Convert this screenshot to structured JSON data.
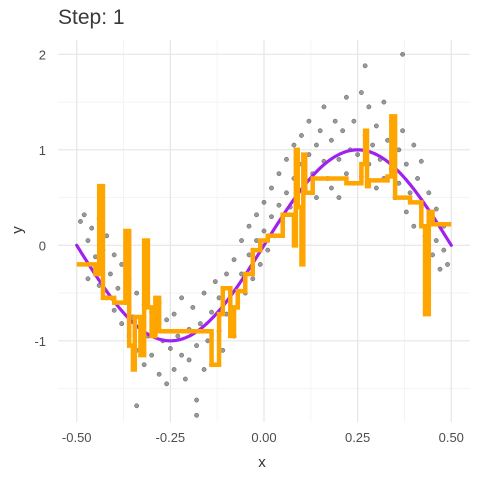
{
  "chart_data": {
    "type": "scatter",
    "title": "Step: 1",
    "xlabel": "x",
    "ylabel": "y",
    "xlim": [
      -0.55,
      0.55
    ],
    "ylim": [
      -1.85,
      2.15
    ],
    "x_ticks": [
      -0.5,
      -0.25,
      0,
      0.25,
      0.5
    ],
    "x_tick_labels": [
      "-0.50",
      "-0.25",
      "0.00",
      "0.25",
      "0.50"
    ],
    "y_ticks": [
      -1,
      0,
      1,
      2
    ],
    "y_tick_labels": [
      "-1",
      "0",
      "1",
      "2"
    ],
    "grid": true,
    "legend": "none",
    "series": [
      {
        "kind": "points",
        "color": "#333333",
        "points_xy": [
          [
            -0.49,
            0.25
          ],
          [
            -0.48,
            0.32
          ],
          [
            -0.47,
            0.05
          ],
          [
            -0.47,
            -0.35
          ],
          [
            -0.46,
            0.18
          ],
          [
            -0.45,
            -0.12
          ],
          [
            -0.44,
            0.28
          ],
          [
            -0.44,
            -0.42
          ],
          [
            -0.43,
            -0.05
          ],
          [
            -0.42,
            -0.55
          ],
          [
            -0.42,
            0.1
          ],
          [
            -0.41,
            -0.3
          ],
          [
            -0.4,
            -0.68
          ],
          [
            -0.4,
            -0.1
          ],
          [
            -0.39,
            -0.45
          ],
          [
            -0.38,
            -0.82
          ],
          [
            -0.38,
            -0.2
          ],
          [
            -0.37,
            -0.6
          ],
          [
            -0.36,
            -0.95
          ],
          [
            -0.36,
            -0.35
          ],
          [
            -0.35,
            -0.75
          ],
          [
            -0.34,
            -1.1
          ],
          [
            -0.34,
            -0.5
          ],
          [
            -0.33,
            -0.85
          ],
          [
            -0.32,
            -1.25
          ],
          [
            -0.32,
            -0.62
          ],
          [
            -0.31,
            -0.95
          ],
          [
            -0.3,
            -0.7
          ],
          [
            -0.3,
            -1.15
          ],
          [
            -0.29,
            -0.85
          ],
          [
            -0.28,
            -1.35
          ],
          [
            -0.28,
            -0.6
          ],
          [
            -0.27,
            -1.0
          ],
          [
            -0.26,
            -0.78
          ],
          [
            -0.26,
            -1.45
          ],
          [
            -0.25,
            -1.08
          ],
          [
            -0.24,
            -0.72
          ],
          [
            -0.24,
            -1.3
          ],
          [
            -0.23,
            -0.95
          ],
          [
            -0.22,
            -1.15
          ],
          [
            -0.22,
            -0.55
          ],
          [
            -0.21,
            -1.4
          ],
          [
            -0.2,
            -0.88
          ],
          [
            -0.2,
            -1.2
          ],
          [
            -0.19,
            -0.65
          ],
          [
            -0.18,
            -1.05
          ],
          [
            -0.18,
            -1.62
          ],
          [
            -0.17,
            -0.82
          ],
          [
            -0.16,
            -1.3
          ],
          [
            -0.16,
            -0.5
          ],
          [
            -0.15,
            -1.0
          ],
          [
            -0.14,
            -0.7
          ],
          [
            -0.14,
            -1.25
          ],
          [
            -0.13,
            -0.38
          ],
          [
            -0.12,
            -0.9
          ],
          [
            -0.12,
            -0.55
          ],
          [
            -0.11,
            -1.1
          ],
          [
            -0.1,
            -0.3
          ],
          [
            -0.1,
            -0.72
          ],
          [
            -0.09,
            -0.45
          ],
          [
            -0.08,
            -0.95
          ],
          [
            -0.08,
            -0.15
          ],
          [
            -0.07,
            -0.6
          ],
          [
            -0.06,
            -0.3
          ],
          [
            -0.06,
            0.05
          ],
          [
            -0.05,
            -0.5
          ],
          [
            -0.04,
            -0.1
          ],
          [
            -0.04,
            0.2
          ],
          [
            -0.03,
            -0.35
          ],
          [
            -0.02,
            0.05
          ],
          [
            -0.02,
            0.32
          ],
          [
            -0.01,
            -0.2
          ],
          [
            0.0,
            0.15
          ],
          [
            0.0,
            0.45
          ],
          [
            0.01,
            -0.05
          ],
          [
            0.02,
            0.3
          ],
          [
            0.02,
            0.6
          ],
          [
            0.03,
            0.1
          ],
          [
            0.04,
            0.42
          ],
          [
            0.04,
            0.75
          ],
          [
            0.05,
            0.25
          ],
          [
            0.06,
            0.55
          ],
          [
            0.06,
            0.9
          ],
          [
            0.07,
            0.4
          ],
          [
            0.08,
            0.7
          ],
          [
            0.08,
            1.05
          ],
          [
            0.09,
            0.5
          ],
          [
            0.1,
            0.85
          ],
          [
            0.1,
            1.15
          ],
          [
            0.11,
            0.6
          ],
          [
            0.12,
            0.95
          ],
          [
            0.12,
            1.3
          ],
          [
            0.13,
            0.75
          ],
          [
            0.14,
            1.05
          ],
          [
            0.14,
            0.5
          ],
          [
            0.15,
            1.2
          ],
          [
            0.16,
            0.88
          ],
          [
            0.16,
            1.45
          ],
          [
            0.17,
            0.7
          ],
          [
            0.18,
            1.1
          ],
          [
            0.18,
            0.6
          ],
          [
            0.19,
            1.3
          ],
          [
            0.2,
            0.9
          ],
          [
            0.2,
            0.5
          ],
          [
            0.21,
            1.2
          ],
          [
            0.22,
            0.75
          ],
          [
            0.22,
            1.55
          ],
          [
            0.23,
            1.0
          ],
          [
            0.24,
            0.65
          ],
          [
            0.24,
            1.3
          ],
          [
            0.25,
            0.95
          ],
          [
            0.26,
            1.6
          ],
          [
            0.26,
            0.72
          ],
          [
            0.27,
            1.15
          ],
          [
            0.28,
            0.85
          ],
          [
            0.28,
            1.45
          ],
          [
            0.29,
            1.05
          ],
          [
            0.3,
            0.6
          ],
          [
            0.3,
            1.25
          ],
          [
            0.31,
            0.9
          ],
          [
            0.32,
            1.5
          ],
          [
            0.32,
            0.7
          ],
          [
            0.33,
            1.1
          ],
          [
            0.34,
            0.8
          ],
          [
            0.34,
            1.3
          ],
          [
            0.35,
            0.5
          ],
          [
            0.36,
            1.0
          ],
          [
            0.36,
            0.65
          ],
          [
            0.37,
            1.2
          ],
          [
            0.38,
            0.35
          ],
          [
            0.38,
            0.85
          ],
          [
            0.39,
            0.55
          ],
          [
            0.4,
            1.05
          ],
          [
            0.4,
            0.2
          ],
          [
            0.41,
            0.7
          ],
          [
            0.42,
            0.4
          ],
          [
            0.42,
            0.88
          ],
          [
            0.43,
            0.1
          ],
          [
            0.44,
            0.55
          ],
          [
            0.44,
            0.25
          ],
          [
            0.45,
            -0.1
          ],
          [
            0.46,
            0.38
          ],
          [
            0.46,
            0.05
          ],
          [
            0.47,
            -0.25
          ],
          [
            0.48,
            0.2
          ],
          [
            0.48,
            -0.05
          ],
          [
            0.49,
            -0.2
          ],
          [
            0.27,
            1.88
          ],
          [
            0.37,
            2.0
          ],
          [
            -0.18,
            -1.78
          ],
          [
            -0.34,
            -1.68
          ]
        ]
      },
      {
        "kind": "line",
        "name": "",
        "color": "#a020f0",
        "function": "sin(2*pi*x)",
        "x_range": [
          -0.5,
          0.5
        ]
      },
      {
        "kind": "step",
        "name": "",
        "color": "#ffa500",
        "points_xy": [
          [
            -0.5,
            -0.2
          ],
          [
            -0.45,
            -0.2
          ],
          [
            -0.45,
            -0.3
          ],
          [
            -0.44,
            -0.3
          ],
          [
            -0.44,
            0.62
          ],
          [
            -0.43,
            0.62
          ],
          [
            -0.43,
            -0.55
          ],
          [
            -0.4,
            -0.55
          ],
          [
            -0.4,
            -0.6
          ],
          [
            -0.37,
            -0.6
          ],
          [
            -0.37,
            0.15
          ],
          [
            -0.36,
            0.15
          ],
          [
            -0.36,
            -1.05
          ],
          [
            -0.35,
            -1.05
          ],
          [
            -0.35,
            -1.3
          ],
          [
            -0.345,
            -1.3
          ],
          [
            -0.345,
            -0.75
          ],
          [
            -0.33,
            -0.75
          ],
          [
            -0.33,
            -1.15
          ],
          [
            -0.32,
            -1.15
          ],
          [
            -0.32,
            0.05
          ],
          [
            -0.31,
            0.05
          ],
          [
            -0.31,
            -0.65
          ],
          [
            -0.3,
            -0.65
          ],
          [
            -0.3,
            -0.95
          ],
          [
            -0.29,
            -0.95
          ],
          [
            -0.29,
            -0.55
          ],
          [
            -0.28,
            -0.55
          ],
          [
            -0.28,
            -0.9
          ],
          [
            -0.14,
            -0.9
          ],
          [
            -0.14,
            -1.25
          ],
          [
            -0.12,
            -1.25
          ],
          [
            -0.12,
            -0.72
          ],
          [
            -0.11,
            -0.72
          ],
          [
            -0.11,
            -0.45
          ],
          [
            -0.09,
            -0.45
          ],
          [
            -0.09,
            -0.95
          ],
          [
            -0.08,
            -0.95
          ],
          [
            -0.08,
            -0.65
          ],
          [
            -0.07,
            -0.65
          ],
          [
            -0.07,
            -0.48
          ],
          [
            -0.05,
            -0.48
          ],
          [
            -0.05,
            -0.3
          ],
          [
            -0.03,
            -0.3
          ],
          [
            -0.03,
            -0.05
          ],
          [
            -0.01,
            -0.05
          ],
          [
            -0.01,
            0.05
          ],
          [
            0.01,
            0.05
          ],
          [
            0.01,
            0.1
          ],
          [
            0.05,
            0.1
          ],
          [
            0.05,
            0.32
          ],
          [
            0.08,
            0.32
          ],
          [
            0.08,
            0.0
          ],
          [
            0.085,
            0.0
          ],
          [
            0.085,
            1.0
          ],
          [
            0.09,
            1.0
          ],
          [
            0.09,
            0.4
          ],
          [
            0.1,
            0.4
          ],
          [
            0.1,
            -0.2
          ],
          [
            0.105,
            -0.2
          ],
          [
            0.105,
            0.95
          ],
          [
            0.11,
            0.95
          ],
          [
            0.11,
            0.55
          ],
          [
            0.13,
            0.55
          ],
          [
            0.13,
            0.7
          ],
          [
            0.22,
            0.7
          ],
          [
            0.22,
            0.65
          ],
          [
            0.26,
            0.65
          ],
          [
            0.26,
            0.85
          ],
          [
            0.27,
            0.85
          ],
          [
            0.27,
            1.2
          ],
          [
            0.275,
            1.2
          ],
          [
            0.275,
            0.62
          ],
          [
            0.28,
            0.62
          ],
          [
            0.28,
            0.68
          ],
          [
            0.33,
            0.68
          ],
          [
            0.33,
            0.72
          ],
          [
            0.34,
            0.72
          ],
          [
            0.34,
            1.35
          ],
          [
            0.35,
            1.35
          ],
          [
            0.35,
            0.5
          ],
          [
            0.39,
            0.5
          ],
          [
            0.39,
            0.45
          ],
          [
            0.42,
            0.45
          ],
          [
            0.42,
            0.2
          ],
          [
            0.43,
            0.2
          ],
          [
            0.43,
            -0.72
          ],
          [
            0.44,
            -0.72
          ],
          [
            0.44,
            0.35
          ],
          [
            0.45,
            0.35
          ],
          [
            0.45,
            0.22
          ],
          [
            0.5,
            0.22
          ]
        ]
      }
    ]
  }
}
